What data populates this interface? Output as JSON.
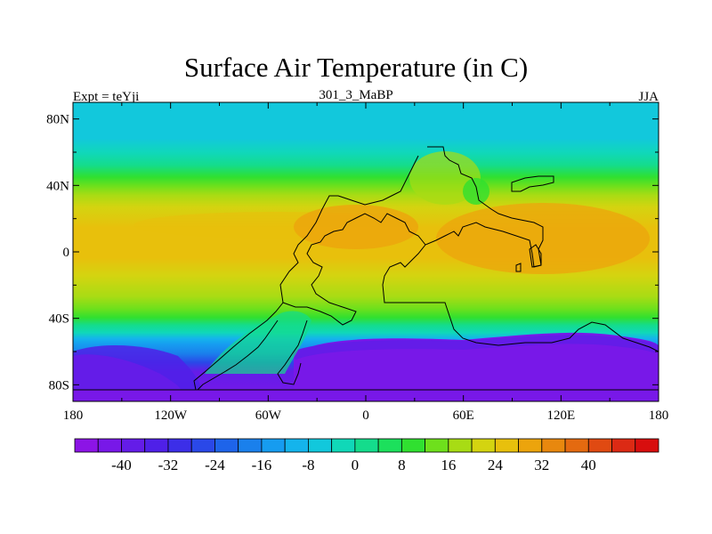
{
  "title": "Surface Air Temperature (in C)",
  "subtitle_left": "Expt = teYji",
  "subtitle_center": "301_3_MaBP",
  "subtitle_right": "JJA",
  "x_axis": {
    "ticks": [
      {
        "value": -180,
        "label": "180"
      },
      {
        "value": -120,
        "label": "120W"
      },
      {
        "value": -60,
        "label": "60W"
      },
      {
        "value": 0,
        "label": "0"
      },
      {
        "value": 60,
        "label": "60E"
      },
      {
        "value": 120,
        "label": "120E"
      },
      {
        "value": 180,
        "label": "180"
      }
    ],
    "range": [
      -180,
      180
    ]
  },
  "y_axis": {
    "ticks": [
      {
        "value": 80,
        "label": "80N"
      },
      {
        "value": 40,
        "label": "40N"
      },
      {
        "value": 0,
        "label": "0"
      },
      {
        "value": -40,
        "label": "40S"
      },
      {
        "value": -80,
        "label": "80S"
      }
    ],
    "range": [
      -90,
      90
    ]
  },
  "colorbar": {
    "colors": [
      "#8c14e6",
      "#7818e8",
      "#641ce8",
      "#4f20e8",
      "#3c2ee8",
      "#2a48e8",
      "#1e64ea",
      "#1a80ec",
      "#169cf0",
      "#14b4ec",
      "#12c8dc",
      "#10d8b8",
      "#14dc8c",
      "#1ce05c",
      "#30e030",
      "#6ee01c",
      "#a8dc14",
      "#d4d410",
      "#e8c00c",
      "#eca40c",
      "#e8880e",
      "#e46a10",
      "#e04a12",
      "#dc2a14",
      "#d80e0e"
    ],
    "labels": [
      {
        "boundary": 2,
        "label": "-40"
      },
      {
        "boundary": 4,
        "label": "-32"
      },
      {
        "boundary": 6,
        "label": "-24"
      },
      {
        "boundary": 8,
        "label": "-16"
      },
      {
        "boundary": 10,
        "label": "-8"
      },
      {
        "boundary": 12,
        "label": "0"
      },
      {
        "boundary": 14,
        "label": "8"
      },
      {
        "boundary": 16,
        "label": "16"
      },
      {
        "boundary": 18,
        "label": "24"
      },
      {
        "boundary": 20,
        "label": "32"
      },
      {
        "boundary": 22,
        "label": "40"
      }
    ]
  }
}
